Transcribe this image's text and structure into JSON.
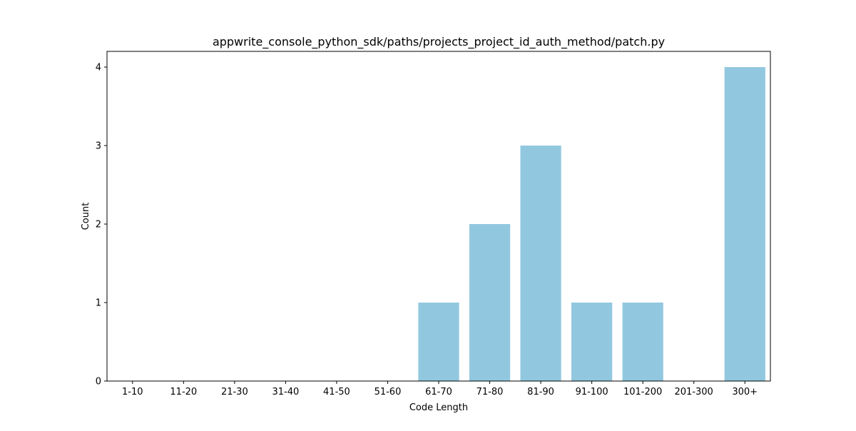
{
  "chart_data": {
    "type": "bar",
    "title": "appwrite_console_python_sdk/paths/projects_project_id_auth_method/patch.py",
    "xlabel": "Code Length",
    "ylabel": "Count",
    "categories": [
      "1-10",
      "11-20",
      "21-30",
      "31-40",
      "41-50",
      "51-60",
      "61-70",
      "71-80",
      "81-90",
      "91-100",
      "101-200",
      "201-300",
      "300+"
    ],
    "values": [
      0,
      0,
      0,
      0,
      0,
      0,
      1,
      2,
      3,
      1,
      1,
      0,
      4
    ],
    "ylim": [
      0,
      4.2
    ],
    "yticks": [
      0,
      1,
      2,
      3,
      4
    ],
    "bar_color": "#92c8df",
    "grid": false,
    "legend": "none"
  }
}
